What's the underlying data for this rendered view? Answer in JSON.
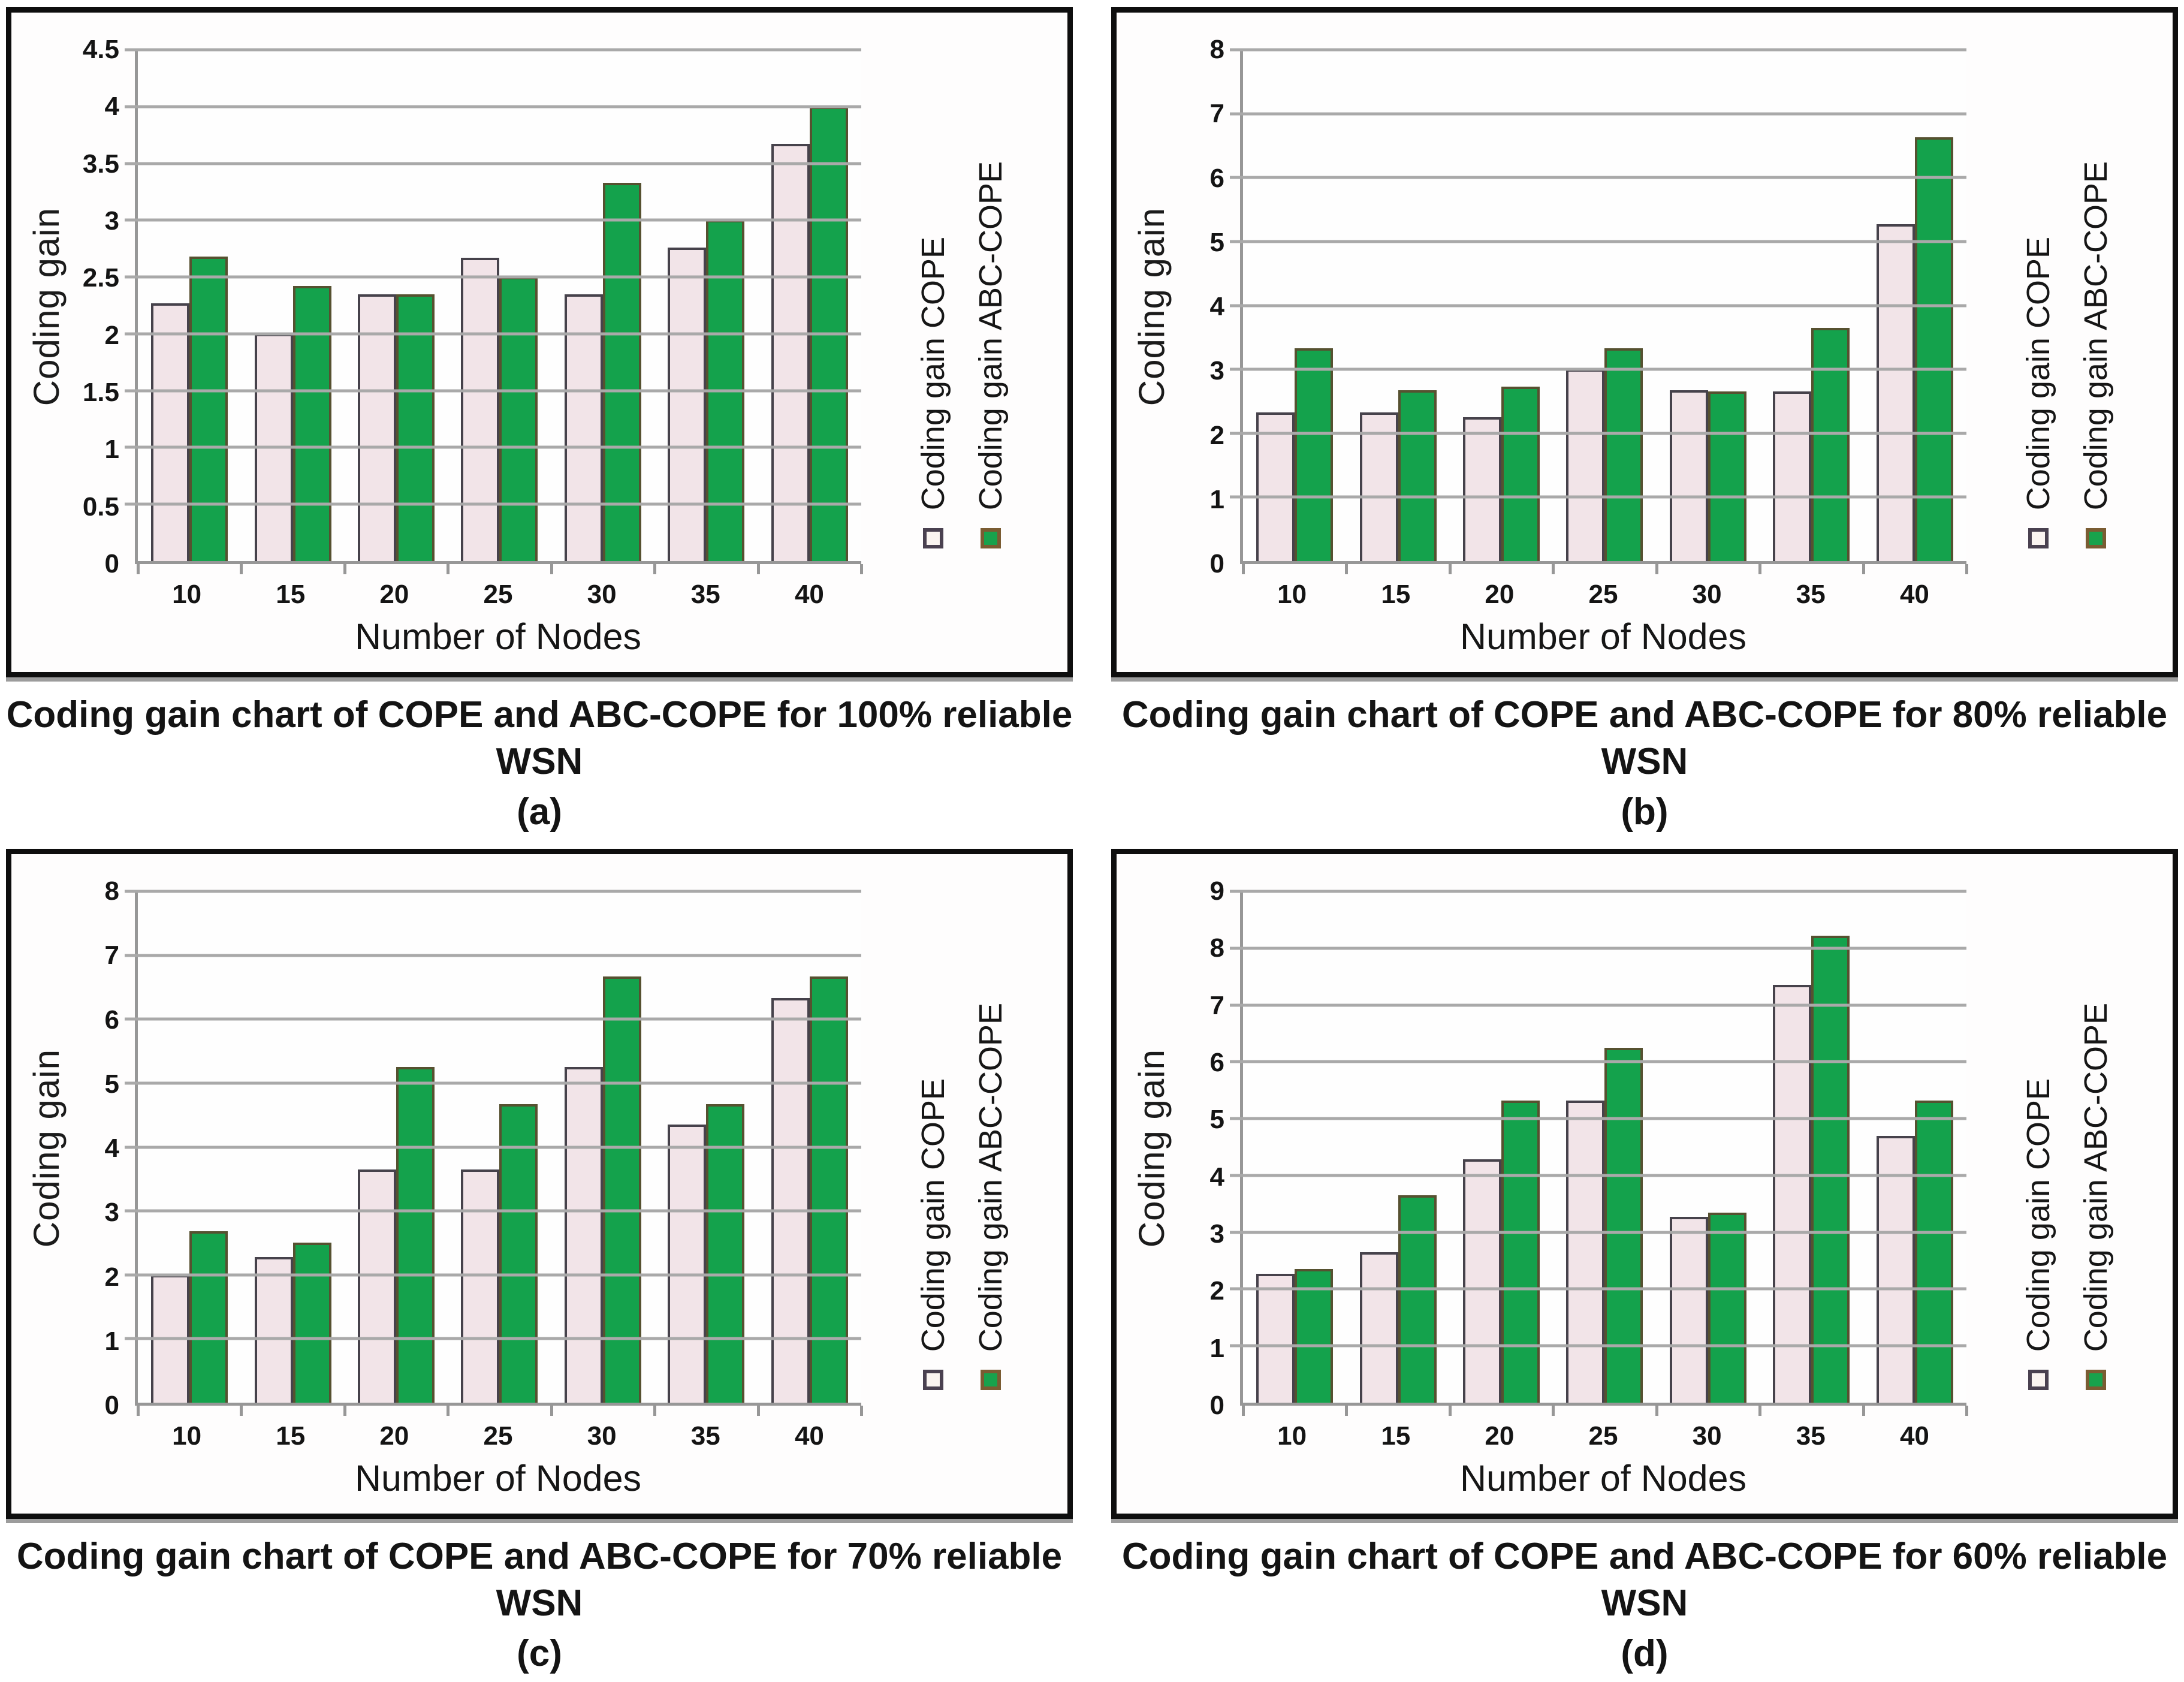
{
  "figure": {
    "description": "Four bar chart panels comparing coding gain of COPE and ABC-COPE versus number of nodes at different WSN reliability levels"
  },
  "colors": {
    "cope_fill": "#f2e4e8",
    "cope_border": "#46424b",
    "abc_fill": "#14a24c",
    "abc_border": "#565130",
    "gridline": "#a9a9a9",
    "axis": "#979797",
    "panel_border": "#0e0e0e",
    "text": "#141414"
  },
  "chart_data": [
    {
      "type": "bar",
      "panel_label": "(a)",
      "title": "Coding gain chart of COPE and ABC-COPE for 100% reliable WSN",
      "xlabel": "Number of Nodes",
      "ylabel": "Coding gain",
      "categories": [
        "10",
        "15",
        "20",
        "25",
        "30",
        "35",
        "40"
      ],
      "series": [
        {
          "name": "Coding gain COPE",
          "values": [
            2.27,
            2.0,
            2.35,
            2.67,
            2.35,
            2.76,
            3.67
          ]
        },
        {
          "name": "Coding gain ABC-COPE",
          "values": [
            2.68,
            2.42,
            2.35,
            2.5,
            3.33,
            3.0,
            4.0
          ]
        }
      ],
      "ylim": [
        0,
        4.5
      ],
      "ytick_step": 0.5,
      "grid": true,
      "legend_position": "right"
    },
    {
      "type": "bar",
      "panel_label": "(b)",
      "title": "Coding gain chart of COPE and ABC-COPE for 80% reliable WSN",
      "xlabel": "Number of Nodes",
      "ylabel": "Coding gain",
      "categories": [
        "10",
        "15",
        "20",
        "25",
        "30",
        "35",
        "40"
      ],
      "series": [
        {
          "name": "Coding gain COPE",
          "values": [
            2.33,
            2.33,
            2.25,
            3.0,
            2.67,
            2.65,
            5.27
          ]
        },
        {
          "name": "Coding gain ABC-COPE",
          "values": [
            3.33,
            2.67,
            2.73,
            3.33,
            2.65,
            3.65,
            6.63
          ]
        }
      ],
      "ylim": [
        0,
        8
      ],
      "ytick_step": 1,
      "grid": true,
      "legend_position": "right"
    },
    {
      "type": "bar",
      "panel_label": "(c)",
      "title": "Coding gain chart of COPE and ABC-COPE for 70% reliable WSN",
      "xlabel": "Number of Nodes",
      "ylabel": "Coding gain",
      "categories": [
        "10",
        "15",
        "20",
        "25",
        "30",
        "35",
        "40"
      ],
      "series": [
        {
          "name": "Coding gain COPE",
          "values": [
            2.0,
            2.28,
            3.65,
            3.65,
            5.25,
            4.35,
            6.33
          ]
        },
        {
          "name": "Coding gain ABC-COPE",
          "values": [
            2.68,
            2.5,
            5.25,
            4.67,
            6.67,
            4.67,
            6.67
          ]
        }
      ],
      "ylim": [
        0,
        8
      ],
      "ytick_step": 1,
      "grid": true,
      "legend_position": "right"
    },
    {
      "type": "bar",
      "panel_label": "(d)",
      "title": "Coding gain chart of COPE and ABC-COPE for 60% reliable WSN",
      "xlabel": "Number of Nodes",
      "ylabel": "Coding gain",
      "categories": [
        "10",
        "15",
        "20",
        "25",
        "30",
        "35",
        "40"
      ],
      "series": [
        {
          "name": "Coding gain COPE",
          "values": [
            2.27,
            2.65,
            4.28,
            5.32,
            3.27,
            7.35,
            4.7
          ]
        },
        {
          "name": "Coding gain ABC-COPE",
          "values": [
            2.35,
            3.65,
            5.32,
            6.25,
            3.35,
            8.22,
            5.32
          ]
        }
      ],
      "ylim": [
        0,
        9
      ],
      "ytick_step": 1,
      "grid": true,
      "legend_position": "right"
    }
  ]
}
